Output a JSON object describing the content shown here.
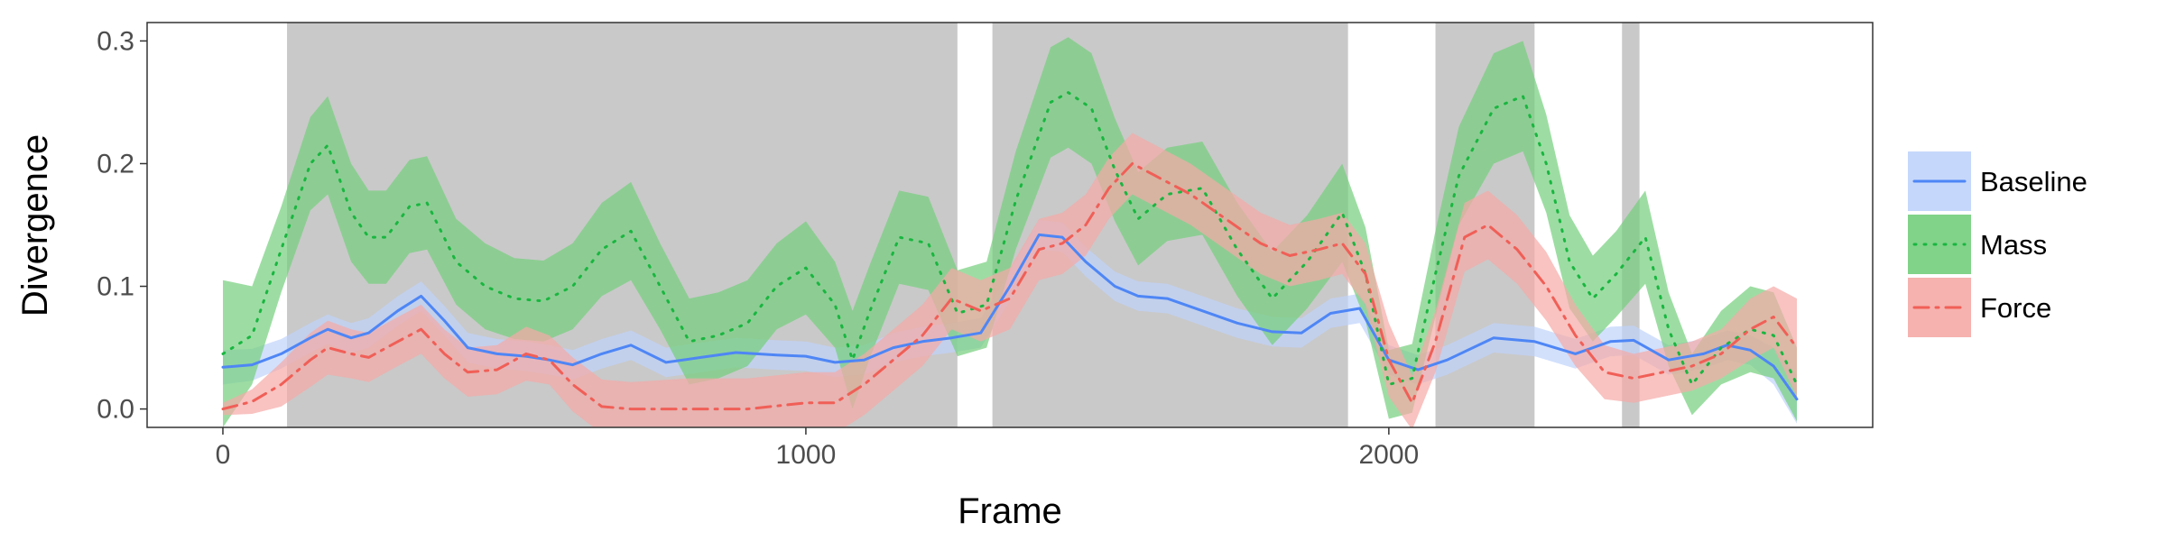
{
  "chart_data": {
    "type": "line",
    "title": "",
    "xlabel": "Frame",
    "ylabel": "Divergence",
    "xlim": [
      -130,
      2830
    ],
    "ylim": [
      -0.015,
      0.315
    ],
    "xticks": [
      0,
      1000,
      2000
    ],
    "xtick_labels": [
      "0",
      "1000",
      "2000"
    ],
    "yticks": [
      0.0,
      0.1,
      0.2,
      0.3
    ],
    "ytick_labels": [
      "0.0",
      "0.1",
      "0.2",
      "0.3"
    ],
    "grid": false,
    "legend_position": "right",
    "shaded_regions": [
      [
        110,
        1260
      ],
      [
        1320,
        1930
      ],
      [
        2080,
        2250
      ],
      [
        2400,
        2430
      ]
    ],
    "shaded_color": "#c9c9c9",
    "series": [
      {
        "name": "Baseline",
        "color": "#4e86f5",
        "band_color": "#bfd3fb",
        "linestyle": "solid",
        "points": [
          [
            0,
            0.034
          ],
          [
            50,
            0.036
          ],
          [
            100,
            0.045
          ],
          [
            150,
            0.058
          ],
          [
            180,
            0.065
          ],
          [
            220,
            0.058
          ],
          [
            250,
            0.062
          ],
          [
            300,
            0.08
          ],
          [
            340,
            0.092
          ],
          [
            380,
            0.072
          ],
          [
            420,
            0.05
          ],
          [
            470,
            0.045
          ],
          [
            520,
            0.043
          ],
          [
            560,
            0.04
          ],
          [
            600,
            0.036
          ],
          [
            650,
            0.045
          ],
          [
            700,
            0.052
          ],
          [
            760,
            0.038
          ],
          [
            820,
            0.042
          ],
          [
            880,
            0.046
          ],
          [
            950,
            0.044
          ],
          [
            1000,
            0.043
          ],
          [
            1050,
            0.038
          ],
          [
            1100,
            0.04
          ],
          [
            1150,
            0.05
          ],
          [
            1200,
            0.055
          ],
          [
            1250,
            0.058
          ],
          [
            1300,
            0.062
          ],
          [
            1350,
            0.1
          ],
          [
            1400,
            0.142
          ],
          [
            1440,
            0.14
          ],
          [
            1480,
            0.12
          ],
          [
            1530,
            0.1
          ],
          [
            1570,
            0.092
          ],
          [
            1620,
            0.09
          ],
          [
            1680,
            0.08
          ],
          [
            1740,
            0.07
          ],
          [
            1800,
            0.063
          ],
          [
            1850,
            0.062
          ],
          [
            1900,
            0.078
          ],
          [
            1950,
            0.082
          ],
          [
            2000,
            0.04
          ],
          [
            2050,
            0.032
          ],
          [
            2100,
            0.04
          ],
          [
            2180,
            0.058
          ],
          [
            2250,
            0.055
          ],
          [
            2320,
            0.045
          ],
          [
            2380,
            0.055
          ],
          [
            2420,
            0.056
          ],
          [
            2480,
            0.04
          ],
          [
            2540,
            0.045
          ],
          [
            2580,
            0.052
          ],
          [
            2620,
            0.048
          ],
          [
            2660,
            0.035
          ],
          [
            2700,
            0.008
          ]
        ],
        "band_half_width": [
          0.014,
          0.013,
          0.012,
          0.012,
          0.012,
          0.012,
          0.012,
          0.012,
          0.012,
          0.012,
          0.012,
          0.012,
          0.012,
          0.012,
          0.012,
          0.012,
          0.012,
          0.012,
          0.012,
          0.012,
          0.012,
          0.012,
          0.012,
          0.012,
          0.012,
          0.012,
          0.012,
          0.012,
          0.012,
          0.012,
          0.012,
          0.012,
          0.012,
          0.012,
          0.012,
          0.012,
          0.012,
          0.012,
          0.012,
          0.012,
          0.012,
          0.012,
          0.012,
          0.012,
          0.012,
          0.012,
          0.012,
          0.012,
          0.012,
          0.012,
          0.012,
          0.012,
          0.012,
          0.015,
          0.02
        ]
      },
      {
        "name": "Mass",
        "color": "#19b640",
        "band_color": "#73ce7c",
        "linestyle": "dotted",
        "points": [
          [
            0,
            0.045
          ],
          [
            50,
            0.06
          ],
          [
            100,
            0.13
          ],
          [
            150,
            0.2
          ],
          [
            180,
            0.215
          ],
          [
            220,
            0.16
          ],
          [
            250,
            0.14
          ],
          [
            280,
            0.14
          ],
          [
            320,
            0.165
          ],
          [
            350,
            0.168
          ],
          [
            400,
            0.12
          ],
          [
            450,
            0.1
          ],
          [
            500,
            0.09
          ],
          [
            550,
            0.088
          ],
          [
            600,
            0.1
          ],
          [
            650,
            0.13
          ],
          [
            700,
            0.145
          ],
          [
            750,
            0.1
          ],
          [
            800,
            0.055
          ],
          [
            850,
            0.06
          ],
          [
            900,
            0.07
          ],
          [
            950,
            0.1
          ],
          [
            1000,
            0.115
          ],
          [
            1050,
            0.085
          ],
          [
            1080,
            0.04
          ],
          [
            1110,
            0.08
          ],
          [
            1160,
            0.14
          ],
          [
            1210,
            0.135
          ],
          [
            1260,
            0.078
          ],
          [
            1310,
            0.085
          ],
          [
            1360,
            0.17
          ],
          [
            1420,
            0.25
          ],
          [
            1450,
            0.258
          ],
          [
            1490,
            0.245
          ],
          [
            1530,
            0.195
          ],
          [
            1570,
            0.155
          ],
          [
            1620,
            0.175
          ],
          [
            1680,
            0.18
          ],
          [
            1740,
            0.13
          ],
          [
            1800,
            0.09
          ],
          [
            1860,
            0.12
          ],
          [
            1920,
            0.16
          ],
          [
            1960,
            0.11
          ],
          [
            2000,
            0.02
          ],
          [
            2040,
            0.025
          ],
          [
            2080,
            0.11
          ],
          [
            2120,
            0.19
          ],
          [
            2180,
            0.245
          ],
          [
            2230,
            0.255
          ],
          [
            2270,
            0.2
          ],
          [
            2310,
            0.12
          ],
          [
            2350,
            0.09
          ],
          [
            2390,
            0.11
          ],
          [
            2440,
            0.14
          ],
          [
            2480,
            0.065
          ],
          [
            2520,
            0.02
          ],
          [
            2570,
            0.05
          ],
          [
            2620,
            0.065
          ],
          [
            2660,
            0.06
          ],
          [
            2700,
            0.02
          ]
        ],
        "band_half_width": [
          0.06,
          0.04,
          0.035,
          0.038,
          0.04,
          0.04,
          0.038,
          0.038,
          0.038,
          0.038,
          0.035,
          0.035,
          0.033,
          0.033,
          0.035,
          0.038,
          0.04,
          0.035,
          0.035,
          0.035,
          0.035,
          0.035,
          0.038,
          0.035,
          0.04,
          0.038,
          0.038,
          0.038,
          0.035,
          0.035,
          0.04,
          0.045,
          0.045,
          0.045,
          0.042,
          0.038,
          0.038,
          0.038,
          0.038,
          0.038,
          0.038,
          0.04,
          0.038,
          0.028,
          0.028,
          0.035,
          0.04,
          0.045,
          0.045,
          0.04,
          0.038,
          0.035,
          0.035,
          0.038,
          0.03,
          0.025,
          0.03,
          0.035,
          0.035,
          0.03
        ]
      },
      {
        "name": "Force",
        "color": "#f05f57",
        "band_color": "#f5aaa6",
        "linestyle": "dashdot",
        "points": [
          [
            0,
            0.0
          ],
          [
            50,
            0.006
          ],
          [
            100,
            0.02
          ],
          [
            150,
            0.04
          ],
          [
            180,
            0.05
          ],
          [
            220,
            0.045
          ],
          [
            250,
            0.042
          ],
          [
            300,
            0.055
          ],
          [
            340,
            0.065
          ],
          [
            380,
            0.045
          ],
          [
            420,
            0.03
          ],
          [
            470,
            0.032
          ],
          [
            520,
            0.045
          ],
          [
            560,
            0.04
          ],
          [
            600,
            0.02
          ],
          [
            650,
            0.002
          ],
          [
            700,
            0.0
          ],
          [
            800,
            0.0
          ],
          [
            900,
            0.0
          ],
          [
            1000,
            0.005
          ],
          [
            1050,
            0.005
          ],
          [
            1100,
            0.02
          ],
          [
            1150,
            0.04
          ],
          [
            1200,
            0.06
          ],
          [
            1250,
            0.09
          ],
          [
            1300,
            0.08
          ],
          [
            1350,
            0.09
          ],
          [
            1400,
            0.13
          ],
          [
            1440,
            0.135
          ],
          [
            1480,
            0.15
          ],
          [
            1520,
            0.18
          ],
          [
            1560,
            0.2
          ],
          [
            1600,
            0.19
          ],
          [
            1660,
            0.175
          ],
          [
            1720,
            0.155
          ],
          [
            1780,
            0.135
          ],
          [
            1830,
            0.125
          ],
          [
            1880,
            0.13
          ],
          [
            1920,
            0.135
          ],
          [
            1960,
            0.11
          ],
          [
            2000,
            0.04
          ],
          [
            2040,
            0.005
          ],
          [
            2080,
            0.055
          ],
          [
            2130,
            0.14
          ],
          [
            2170,
            0.15
          ],
          [
            2220,
            0.13
          ],
          [
            2270,
            0.1
          ],
          [
            2320,
            0.06
          ],
          [
            2370,
            0.03
          ],
          [
            2420,
            0.025
          ],
          [
            2470,
            0.03
          ],
          [
            2520,
            0.035
          ],
          [
            2570,
            0.045
          ],
          [
            2620,
            0.065
          ],
          [
            2660,
            0.075
          ],
          [
            2700,
            0.05
          ]
        ],
        "band_half_width": [
          0.005,
          0.01,
          0.018,
          0.022,
          0.022,
          0.02,
          0.02,
          0.02,
          0.02,
          0.02,
          0.02,
          0.02,
          0.022,
          0.02,
          0.022,
          0.022,
          0.022,
          0.025,
          0.025,
          0.025,
          0.025,
          0.025,
          0.025,
          0.025,
          0.025,
          0.025,
          0.025,
          0.025,
          0.025,
          0.025,
          0.025,
          0.025,
          0.025,
          0.025,
          0.025,
          0.025,
          0.025,
          0.025,
          0.025,
          0.025,
          0.03,
          0.022,
          0.025,
          0.028,
          0.028,
          0.028,
          0.028,
          0.025,
          0.022,
          0.02,
          0.02,
          0.02,
          0.02,
          0.025,
          0.025,
          0.04
        ]
      }
    ]
  }
}
